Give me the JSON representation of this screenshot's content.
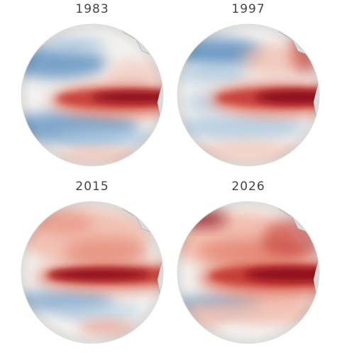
{
  "panels": [
    {
      "title": "1983"
    },
    {
      "title": "1997"
    },
    {
      "title": "2015"
    },
    {
      "title": "2026"
    }
  ]
}
